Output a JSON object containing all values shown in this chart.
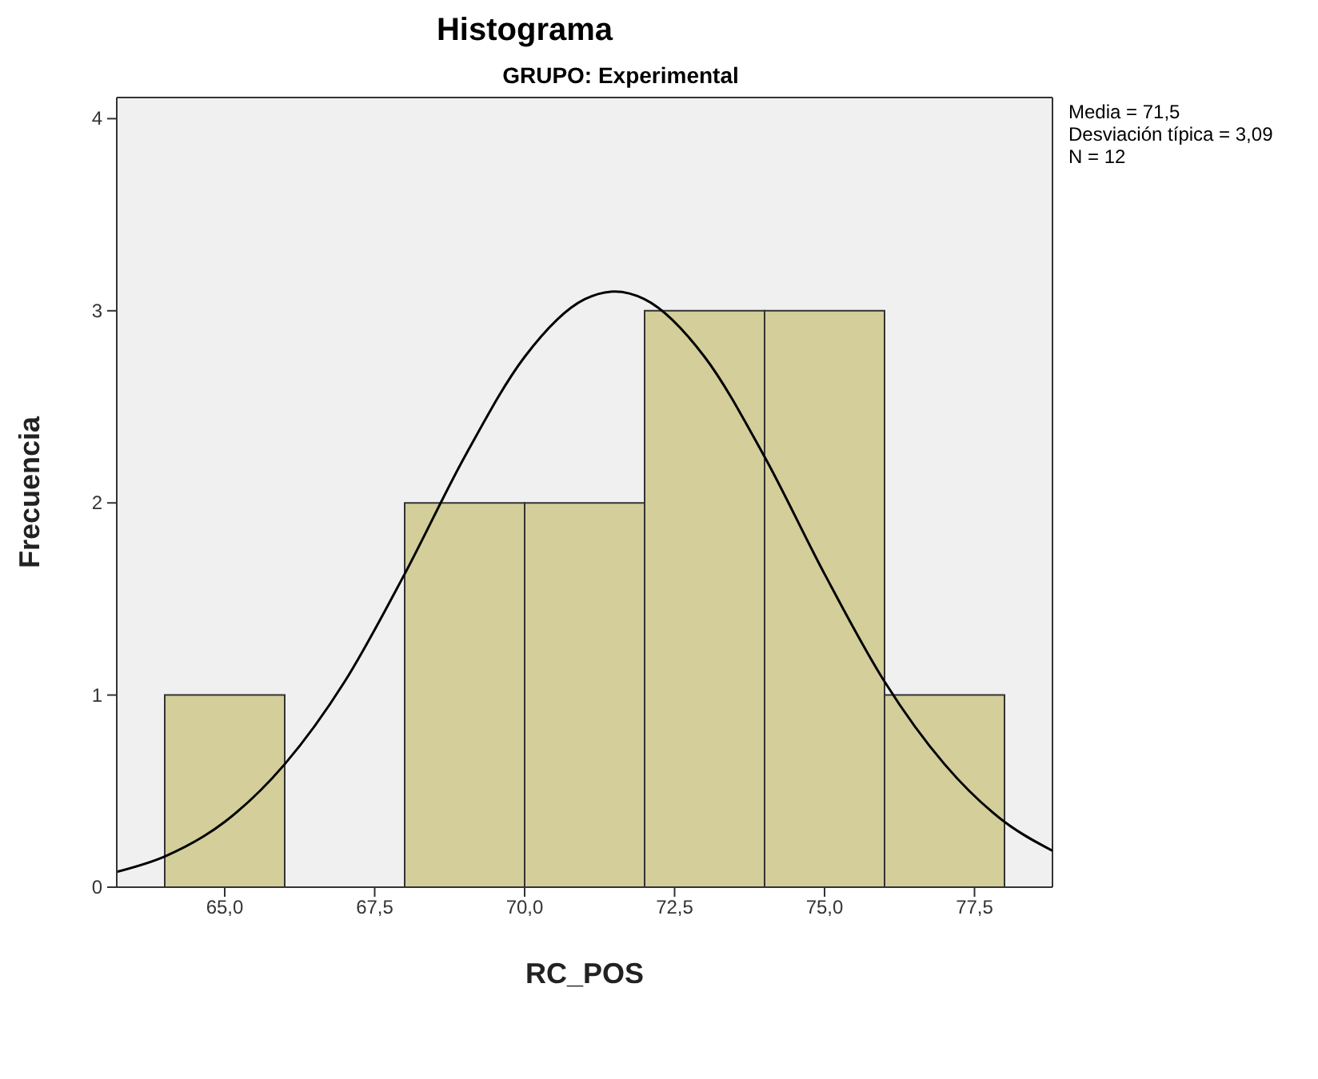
{
  "chart_data": {
    "type": "histogram",
    "title": "Histograma",
    "subtitle": "GRUPO: Experimental",
    "xlabel": "RC_POS",
    "ylabel": "Frecuencia",
    "bins": [
      64,
      66,
      68,
      70,
      72,
      74,
      76,
      78
    ],
    "values": [
      1,
      0,
      2,
      2,
      3,
      3,
      1
    ],
    "color": "#d3ce9a",
    "series": [
      {
        "type": "line",
        "color": "#000000",
        "x": [
          63.2,
          64,
          65,
          66,
          67,
          68,
          69,
          70,
          71,
          71.5,
          72,
          73,
          74,
          75,
          76,
          77,
          78,
          78.8
        ],
        "values": [
          0.08,
          0.16,
          0.34,
          0.64,
          1.07,
          1.63,
          2.24,
          2.76,
          3.06,
          3.1,
          3.06,
          2.76,
          2.24,
          1.63,
          1.07,
          0.64,
          0.34,
          0.19
        ]
      }
    ],
    "xlim": [
      63.2,
      78.8
    ],
    "ylim": [
      0,
      4.11
    ],
    "xticks": [
      {
        "value": 65,
        "label": "65,0"
      },
      {
        "value": 67.5,
        "label": "67,5"
      },
      {
        "value": 70,
        "label": "70,0"
      },
      {
        "value": 72.5,
        "label": "72,5"
      },
      {
        "value": 75,
        "label": "75,0"
      },
      {
        "value": 77.5,
        "label": "77,5"
      }
    ],
    "yticks": [
      0,
      1,
      2,
      3,
      4
    ],
    "annotations": [
      "Media = 71,5",
      "Desviación típica = 3,09",
      "N = 12"
    ]
  }
}
